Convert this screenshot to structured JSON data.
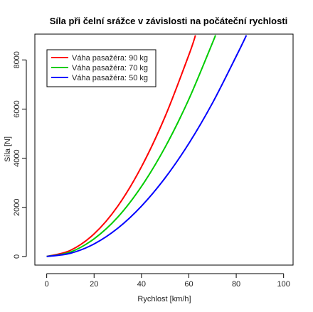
{
  "chart_data": {
    "type": "line",
    "title": "Síla při čelní srážce v závislosti na počáteční rychlosti",
    "xlabel": "Rychlost [km/h]",
    "ylabel": "Síla [N]",
    "xlim": [
      -5,
      104
    ],
    "ylim": [
      -350,
      9050
    ],
    "x_ticks": [
      0,
      20,
      40,
      60,
      80,
      100
    ],
    "y_ticks": [
      0,
      2000,
      4000,
      6000,
      8000
    ],
    "grid": false,
    "legend_position": "top-left",
    "series": [
      {
        "name": "Váha pasažéra: 90 kg",
        "color": "#ff0000",
        "x": [
          0,
          10,
          20,
          30,
          40,
          50,
          60,
          62.8
        ],
        "y": [
          0,
          250,
          920,
          2050,
          3650,
          5700,
          8200,
          9000
        ]
      },
      {
        "name": "Váha pasažéra: 70 kg",
        "color": "#00cc00",
        "x": [
          0,
          10,
          20,
          30,
          40,
          50,
          60,
          70,
          71.2
        ],
        "y": [
          0,
          180,
          720,
          1600,
          2850,
          4450,
          6400,
          8700,
          9000
        ]
      },
      {
        "name": "Váha pasažéra: 50 kg",
        "color": "#0000ff",
        "x": [
          0,
          10,
          20,
          30,
          40,
          50,
          60,
          70,
          80,
          84.3
        ],
        "y": [
          0,
          130,
          510,
          1150,
          2050,
          3200,
          4600,
          6250,
          8150,
          9000
        ]
      }
    ]
  }
}
